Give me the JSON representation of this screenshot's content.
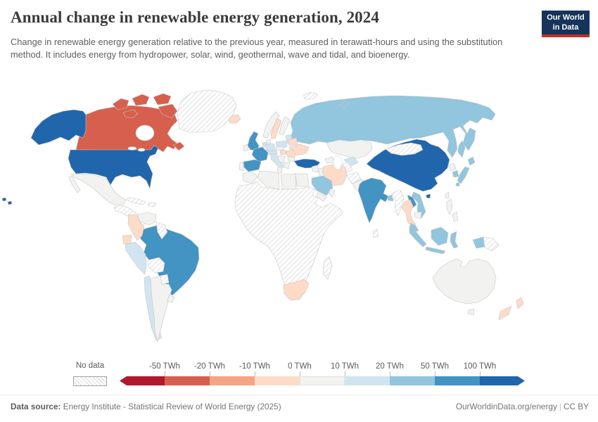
{
  "header": {
    "title": "Annual change in renewable energy generation, 2024",
    "subtitle": "Change in renewable energy generation relative to the previous year, measured in terawatt-hours and using the substitution method. It includes energy from hydropower, solar, wind, geothermal, wave and tidal, and bioenergy.",
    "logo_line1": "Our World",
    "logo_line2": "in Data"
  },
  "brand": {
    "logo_navy": "#16345a",
    "logo_red": "#c62f26"
  },
  "legend": {
    "no_data_label": "No data",
    "tick_labels": [
      "-50 TWh",
      "-20 TWh",
      "-10 TWh",
      "0 TWh",
      "10 TWh",
      "20 TWh",
      "50 TWh",
      "100 TWh"
    ],
    "bucket_keys": [
      "lt-m50",
      "m50-m20",
      "m20-m10",
      "m10-0",
      "p0-10",
      "p10-20",
      "p20-50",
      "p50-100",
      "gt100"
    ]
  },
  "footer": {
    "source_label": "Data source:",
    "source_text": " Energy Institute - Statistical Review of World Energy (2025)",
    "link": "OurWorldinData.org/energy",
    "separator": "|",
    "license": "CC BY"
  },
  "chart_data": {
    "type": "choropleth_map",
    "title": "Annual change in renewable energy generation, 2024",
    "unit": "TWh",
    "bin_edges": [
      -50,
      -20,
      -10,
      0,
      10,
      20,
      50,
      100
    ],
    "legend_position": "bottom",
    "no_data_key": "no-data",
    "bucket_colors": {
      "lt-m50": "#b2182b",
      "m50-m20": "#d6604d",
      "m20-m10": "#f4a582",
      "m10-0": "#fddbc7",
      "p0-10": "#f2f2f1",
      "p10-20": "#d1e5f0",
      "p20-50": "#92c5de",
      "p50-100": "#4393c3",
      "gt100": "#2166ac"
    },
    "regions": {
      "usa": "gt100",
      "canada": "m50-m20",
      "greenland": "no-data",
      "mexico": "p0-10",
      "central-america": "no-data",
      "cuba": "no-data",
      "hispaniola": "no-data",
      "venezuela": "p0-10",
      "guyana": "no-data",
      "colombia": "m10-0",
      "ecuador": "m10-0",
      "peru": "p10-20",
      "brazil": "p50-100",
      "bolivia": "no-data",
      "paraguay": "no-data",
      "chile": "p10-20",
      "argentina": "p0-10",
      "uruguay": "p0-10",
      "iceland": "m10-0",
      "uk": "p50-100",
      "ireland": "p0-10",
      "norway": "p0-10",
      "sweden": "m10-0",
      "finland": "p0-10",
      "denmark": "p0-10",
      "baltics": "p10-20",
      "germany": "p10-20",
      "benelux": "p10-20",
      "france": "p50-100",
      "spain": "p50-100",
      "portugal": "p0-10",
      "italy": "p10-20",
      "alpine": "p10-20",
      "czechia": "p0-10",
      "poland": "p10-20",
      "belarus": "m10-0",
      "ukraine": "m10-0",
      "romania": "m10-0",
      "hungary": "m10-0",
      "balkans": "p0-10",
      "bulgaria": "p0-10",
      "greece": "p0-10",
      "turkey": "gt100",
      "russia": "p20-50",
      "svalbard": "no-data",
      "kazakhstan": "p0-10",
      "uzbekistan": "p10-20",
      "turkmenistan": "no-data",
      "caucasus": "p0-10",
      "syria": "p0-10",
      "iraq": "p0-10",
      "iran": "m10-0",
      "afghanistan": "no-data",
      "pakistan": "p0-10",
      "saudi-arabia": "p20-50",
      "yemen": "p0-10",
      "oman": "p0-10",
      "egypt": "p0-10",
      "libya": "p0-10",
      "algeria": "p0-10",
      "tunisia": "p0-10",
      "morocco": "p0-10",
      "africa-sub": "no-data",
      "south-africa": "m10-0",
      "madagascar": "no-data",
      "india": "p50-100",
      "bangladesh": "p20-50",
      "sri-lanka": "no-data",
      "myanmar": "no-data",
      "thailand": "m10-0",
      "laos": "p50-100",
      "vietnam": "p20-50",
      "cambodia": "p0-10",
      "malaysia": "p20-50",
      "indonesia": "p20-50",
      "philippines": "p0-10",
      "taiwan": "p0-10",
      "png": "no-data",
      "china": "gt100",
      "mongolia": "no-data",
      "north-korea": "p0-10",
      "south-korea": "p20-50",
      "japan": "p20-50",
      "australia": "p0-10",
      "new-zealand": "m10-0"
    }
  }
}
